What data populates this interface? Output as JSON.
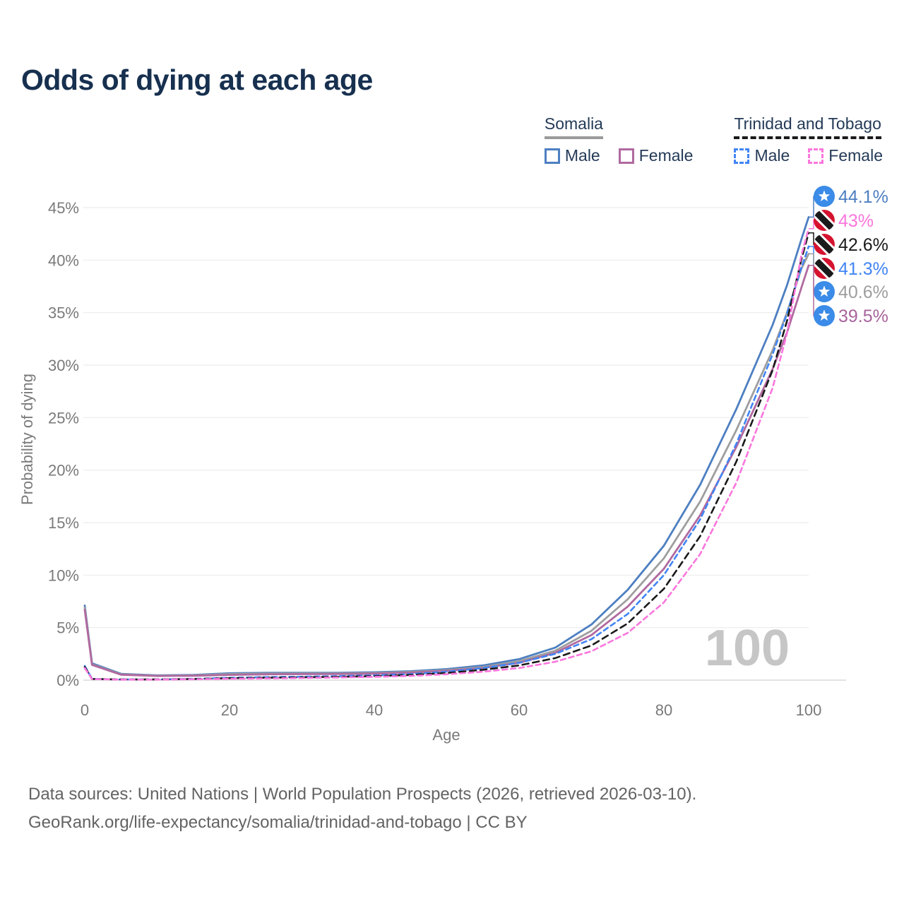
{
  "title": "Odds of dying at each age",
  "legend": {
    "groups": [
      {
        "name": "Somalia",
        "line_style": "solid",
        "line_color": "#9a9a9a",
        "items": [
          {
            "label": "Male",
            "color": "#4d7fc1",
            "dash": false
          },
          {
            "label": "Female",
            "color": "#b0699f",
            "dash": false
          }
        ]
      },
      {
        "name": "Trinidad and Tobago",
        "line_style": "dashed",
        "line_color": "#1a1a1a",
        "items": [
          {
            "label": "Male",
            "color": "#4285f4",
            "dash": true
          },
          {
            "label": "Female",
            "color": "#fb76dd",
            "dash": true
          }
        ]
      }
    ]
  },
  "chart_data": {
    "type": "line",
    "title": "Odds of dying at each age",
    "xlabel": "Age",
    "ylabel": "Probability of dying",
    "x_ticks": [
      0,
      20,
      40,
      60,
      80,
      100
    ],
    "y_ticks_percent": [
      0,
      5,
      10,
      15,
      20,
      25,
      30,
      35,
      40,
      45
    ],
    "xlim": [
      0,
      100
    ],
    "ylim_percent": [
      0,
      47
    ],
    "grid": "horizontal",
    "legend_position": "top-right",
    "cursor_age_watermark": "100",
    "ages": [
      0,
      1,
      5,
      10,
      15,
      20,
      25,
      30,
      35,
      40,
      45,
      50,
      55,
      60,
      65,
      70,
      75,
      80,
      85,
      90,
      95,
      97,
      99,
      100
    ],
    "series": [
      {
        "id": "sm",
        "name": "Somalia Male",
        "country": "Somalia",
        "flag": "somalia",
        "color": "#4d7fc1",
        "dash": false,
        "dash_pattern": "",
        "end_label": "44.1%",
        "end_label_color": "#4d7fc1",
        "values": [
          7.1,
          1.6,
          0.6,
          0.45,
          0.5,
          0.65,
          0.7,
          0.7,
          0.7,
          0.75,
          0.85,
          1.05,
          1.4,
          2.0,
          3.1,
          5.3,
          8.6,
          12.8,
          18.6,
          25.8,
          33.8,
          37.6,
          42.0,
          44.1
        ]
      },
      {
        "id": "sa",
        "name": "Somalia Both sexes",
        "country": "Somalia",
        "flag": "somalia",
        "color": "#9e9e9e",
        "dash": false,
        "dash_pattern": "",
        "end_label": "40.6%",
        "end_label_color": "#9e9e9e",
        "values": [
          6.9,
          1.5,
          0.55,
          0.42,
          0.45,
          0.58,
          0.62,
          0.63,
          0.63,
          0.68,
          0.78,
          0.95,
          1.25,
          1.8,
          2.8,
          4.7,
          7.7,
          11.6,
          17.0,
          23.8,
          31.4,
          35.0,
          39.2,
          40.6
        ]
      },
      {
        "id": "sf",
        "name": "Somalia Female",
        "country": "Somalia",
        "flag": "somalia",
        "color": "#b0699f",
        "dash": false,
        "dash_pattern": "",
        "end_label": "39.5%",
        "end_label_color": "#a8639c",
        "values": [
          6.7,
          1.45,
          0.52,
          0.4,
          0.42,
          0.5,
          0.55,
          0.57,
          0.58,
          0.62,
          0.72,
          0.88,
          1.15,
          1.65,
          2.6,
          4.3,
          7.0,
          10.6,
          15.7,
          22.2,
          29.6,
          33.1,
          37.4,
          39.5
        ]
      },
      {
        "id": "tm",
        "name": "Trinidad and Tobago Male",
        "country": "Trinidad and Tobago",
        "flag": "tt",
        "color": "#4285f4",
        "dash": true,
        "dash_pattern": "7 5",
        "end_label": "41.3%",
        "end_label_color": "#4285f4",
        "values": [
          1.35,
          0.12,
          0.06,
          0.07,
          0.12,
          0.22,
          0.28,
          0.32,
          0.38,
          0.45,
          0.58,
          0.8,
          1.15,
          1.65,
          2.5,
          3.9,
          6.3,
          10.0,
          15.3,
          22.5,
          31.0,
          34.9,
          39.3,
          41.3
        ]
      },
      {
        "id": "ta",
        "name": "Trinidad and Tobago Both sexes",
        "country": "Trinidad and Tobago",
        "flag": "tt",
        "color": "#1a1a1a",
        "dash": true,
        "dash_pattern": "9 6",
        "end_label": "42.6%",
        "end_label_color": "#1a1a1a",
        "values": [
          1.25,
          0.11,
          0.06,
          0.06,
          0.1,
          0.18,
          0.22,
          0.26,
          0.31,
          0.38,
          0.49,
          0.68,
          0.98,
          1.4,
          2.1,
          3.3,
          5.4,
          8.7,
          13.7,
          20.8,
          29.5,
          34.2,
          40.1,
          42.6
        ]
      },
      {
        "id": "tf",
        "name": "Trinidad and Tobago Female",
        "country": "Trinidad and Tobago",
        "flag": "tt",
        "color": "#fb76dd",
        "dash": true,
        "dash_pattern": "7 5",
        "end_label": "43%",
        "end_label_color": "#fb76dd",
        "values": [
          1.15,
          0.1,
          0.05,
          0.05,
          0.08,
          0.13,
          0.16,
          0.2,
          0.25,
          0.31,
          0.4,
          0.56,
          0.8,
          1.15,
          1.75,
          2.75,
          4.5,
          7.4,
          12.0,
          18.8,
          27.8,
          33.0,
          40.5,
          43.0
        ]
      }
    ]
  },
  "flags": {
    "somalia_blue": "#3b8be8",
    "tt_red": "#d5132f",
    "tt_black": "#1a1a1a"
  },
  "footer": {
    "line1": "Data sources: United Nations | World Population Prospects (2026, retrieved 2026-03-10).",
    "line2": "GeoRank.org/life-expectancy/somalia/trinidad-and-tobago | CC BY"
  }
}
